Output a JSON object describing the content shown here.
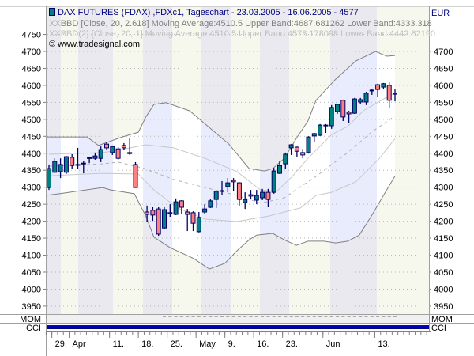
{
  "header": {
    "title": "DAX FUTURES (FDAX) ,FDXc1, Tageschart - 23.03.2005 - 16.06.2005 - 4577",
    "legend_bbd": "BBD [Close, 20, 2.618] Moving Average:4510.5 Upper Band:4687.681262 Lower Band:4333.318",
    "legend_bbd2": "BBD(2) [Close, 20, 1] Moving Average:4510.5 Upper Band:4578.178098 Lower Band:4442.82190",
    "copyright": "© www.tradesignal.com",
    "currency": "EUR"
  },
  "panels": {
    "mom": "MOM",
    "cci": "CCI"
  },
  "colors": {
    "up": "#008080",
    "down": "#ff8080",
    "outline": "#000066",
    "title": "#000080",
    "band_outer": "#808080",
    "band_inner": "#c8c8c8"
  },
  "chart_data": {
    "type": "candlestick",
    "y_ticks_left": [
      4750,
      4700,
      4650,
      4600,
      4550,
      4500,
      4450,
      4400,
      4350,
      4300,
      4250,
      4200,
      4150,
      4100,
      4050,
      4000,
      3950
    ],
    "y_ticks_right": [
      4700,
      4650,
      4600,
      4550,
      4500,
      4450,
      4400,
      4350,
      4300,
      4250,
      4200,
      4150,
      4100,
      4050,
      4000,
      3950
    ],
    "x_labels": [
      {
        "label": "29.",
        "slot": 1
      },
      {
        "label": "Apr",
        "slot": 4
      },
      {
        "label": "11.",
        "slot": 11
      },
      {
        "label": "18.",
        "slot": 16
      },
      {
        "label": "25.",
        "slot": 21
      },
      {
        "label": "May",
        "slot": 26
      },
      {
        "label": "9.",
        "slot": 31
      },
      {
        "label": "16.",
        "slot": 36
      },
      {
        "label": "23.",
        "slot": 41
      },
      {
        "label": "Jun",
        "slot": 48
      },
      {
        "label": "13.",
        "slot": 57
      }
    ],
    "candles_ohlc": [
      [
        4299,
        4367,
        4292,
        4355
      ],
      [
        4344,
        4385,
        4342,
        4376
      ],
      [
        4346,
        4385,
        4327,
        4367
      ],
      [
        4344,
        4392,
        4339,
        4390
      ],
      [
        4388,
        4397,
        4355,
        4364
      ],
      [
        4365,
        4416,
        4353,
        4367
      ],
      [
        4369,
        4378,
        4341,
        4371
      ],
      [
        4385,
        4390,
        4371,
        4387
      ],
      [
        4385,
        4402,
        4381,
        4392
      ],
      [
        4385,
        4420,
        4374,
        4411
      ],
      [
        4427,
        4432,
        4411,
        4416
      ],
      [
        4402,
        4423,
        4395,
        4420
      ],
      [
        4413,
        4418,
        4381,
        4385
      ],
      [
        4423,
        4430,
        4411,
        4416
      ],
      [
        4402,
        4444,
        4395,
        4399
      ],
      [
        4367,
        4374,
        4299,
        4299
      ],
      null,
      [
        4227,
        4246,
        4199,
        4220
      ],
      [
        4232,
        4241,
        4201,
        4218
      ],
      [
        4236,
        4241,
        4157,
        4162
      ],
      [
        4180,
        4241,
        4176,
        4234
      ],
      [
        4222,
        4250,
        4213,
        4225
      ],
      [
        4220,
        4267,
        4218,
        4257
      ],
      [
        4260,
        4262,
        4222,
        4241
      ],
      [
        4227,
        4236,
        4171,
        4220
      ],
      [
        4225,
        4229,
        4171,
        4194
      ],
      [
        4169,
        4227,
        4167,
        4211
      ],
      [
        4227,
        4250,
        4222,
        4236
      ],
      [
        4241,
        4264,
        4239,
        4260
      ],
      [
        4264,
        4290,
        4239,
        4288
      ],
      [
        4288,
        4318,
        4276,
        4290
      ],
      [
        4302,
        4327,
        4285,
        4313
      ],
      [
        4320,
        4327,
        4288,
        4316
      ],
      [
        4313,
        4315,
        4246,
        4264
      ],
      [
        4255,
        4285,
        4236,
        4264
      ],
      [
        4278,
        4292,
        4264,
        4274
      ],
      [
        4262,
        4292,
        4250,
        4276
      ],
      [
        4269,
        4295,
        4262,
        4285
      ],
      [
        4285,
        4295,
        4241,
        4264
      ],
      [
        4285,
        4357,
        4281,
        4348
      ],
      [
        4341,
        4378,
        4339,
        4364
      ],
      [
        4369,
        4402,
        4355,
        4397
      ],
      [
        4416,
        4427,
        4395,
        4425
      ],
      [
        4418,
        4420,
        4388,
        4406
      ],
      [
        4402,
        4413,
        4385,
        4395
      ],
      [
        4402,
        4450,
        4399,
        4448
      ],
      [
        4451,
        4460,
        4434,
        4458
      ],
      [
        4453,
        4486,
        4451,
        4483
      ],
      [
        4481,
        4486,
        4460,
        4483
      ],
      [
        4481,
        4542,
        4472,
        4535
      ],
      [
        4523,
        4546,
        4516,
        4544
      ],
      [
        4556,
        4558,
        4495,
        4507
      ],
      [
        4521,
        4525,
        4488,
        4516
      ],
      [
        4518,
        4563,
        4516,
        4560
      ],
      [
        4551,
        4563,
        4544,
        4558
      ],
      [
        4551,
        4581,
        4542,
        4577
      ],
      [
        4584,
        4588,
        4572,
        4586
      ],
      [
        4602,
        4605,
        4565,
        4588
      ],
      [
        4595,
        4607,
        4588,
        4605
      ],
      [
        4600,
        4609,
        4532,
        4556
      ],
      [
        4574,
        4588,
        4553,
        4577
      ]
    ],
    "bands": {
      "upper_2618": [
        [
          -0.5,
          4448
        ],
        [
          6.6,
          4448
        ],
        [
          8.6,
          4423
        ],
        [
          12.7,
          4448
        ],
        [
          15.5,
          4462
        ],
        [
          16.8,
          4507
        ],
        [
          18.2,
          4544
        ],
        [
          20.3,
          4549
        ],
        [
          24.4,
          4525
        ],
        [
          27.1,
          4486
        ],
        [
          31.2,
          4427
        ],
        [
          34.7,
          4355
        ],
        [
          37.4,
          4348
        ],
        [
          38.8,
          4355
        ],
        [
          40.8,
          4385
        ],
        [
          42.9,
          4444
        ],
        [
          44.9,
          4495
        ],
        [
          46.3,
          4556
        ],
        [
          49.7,
          4618
        ],
        [
          53.2,
          4672
        ],
        [
          56.6,
          4700
        ],
        [
          58.6,
          4686
        ],
        [
          60,
          4688
        ]
      ],
      "lower_2618": [
        [
          -0.5,
          4276
        ],
        [
          1.8,
          4281
        ],
        [
          9.3,
          4299
        ],
        [
          10.7,
          4292
        ],
        [
          14.8,
          4281
        ],
        [
          16.8,
          4215
        ],
        [
          18.2,
          4153
        ],
        [
          21,
          4122
        ],
        [
          25.1,
          4090
        ],
        [
          27.8,
          4059
        ],
        [
          30.5,
          4076
        ],
        [
          32.6,
          4113
        ],
        [
          34.7,
          4145
        ],
        [
          36,
          4159
        ],
        [
          38.8,
          4164
        ],
        [
          40.8,
          4145
        ],
        [
          42.9,
          4129
        ],
        [
          44.9,
          4141
        ],
        [
          47.7,
          4141
        ],
        [
          49.7,
          4136
        ],
        [
          51.8,
          4141
        ],
        [
          53.8,
          4159
        ],
        [
          55.9,
          4215
        ],
        [
          58,
          4276
        ],
        [
          60,
          4333
        ]
      ],
      "moving_average": [
        [
          0,
          4362
        ],
        [
          9.3,
          4369
        ],
        [
          12,
          4374
        ],
        [
          16.2,
          4357
        ],
        [
          21.6,
          4323
        ],
        [
          27.1,
          4299
        ],
        [
          32.6,
          4276
        ],
        [
          36.7,
          4253
        ],
        [
          40.8,
          4269
        ],
        [
          44.9,
          4316
        ],
        [
          46.3,
          4332
        ],
        [
          51.8,
          4402
        ],
        [
          55.9,
          4462
        ],
        [
          60,
          4510
        ]
      ],
      "upper_1": [
        [
          0,
          4397
        ],
        [
          9.3,
          4402
        ],
        [
          12,
          4409
        ],
        [
          16.8,
          4425
        ],
        [
          21.6,
          4416
        ],
        [
          27.1,
          4385
        ],
        [
          32.6,
          4346
        ],
        [
          36.7,
          4292
        ],
        [
          39.5,
          4288
        ],
        [
          42.2,
          4332
        ],
        [
          44.9,
          4385
        ],
        [
          49,
          4455
        ],
        [
          51.8,
          4479
        ],
        [
          54.5,
          4525
        ],
        [
          57.3,
          4553
        ],
        [
          60,
          4578
        ]
      ],
      "lower_1": [
        [
          0,
          4334
        ],
        [
          9.3,
          4341
        ],
        [
          15.5,
          4339
        ],
        [
          18.2,
          4292
        ],
        [
          22.3,
          4239
        ],
        [
          27.1,
          4206
        ],
        [
          32.6,
          4199
        ],
        [
          38.1,
          4215
        ],
        [
          43.6,
          4239
        ],
        [
          46.3,
          4276
        ],
        [
          49,
          4285
        ],
        [
          53.2,
          4316
        ],
        [
          57.3,
          4385
        ],
        [
          60,
          4443
        ]
      ]
    }
  }
}
